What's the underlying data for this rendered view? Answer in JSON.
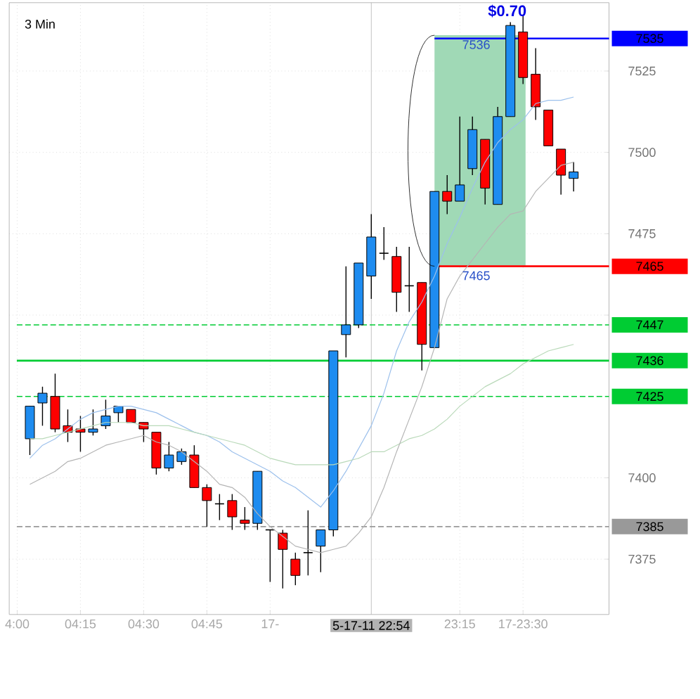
{
  "chart_data": {
    "type": "candlestick",
    "title": "3 Min",
    "categories": [
      "4:00",
      null,
      null,
      null,
      null,
      "04:15",
      null,
      null,
      null,
      null,
      "04:30",
      null,
      null,
      null,
      null,
      "04:45",
      null,
      null,
      null,
      null,
      "17-",
      null,
      null,
      null,
      null,
      null,
      null,
      null,
      null,
      null,
      null,
      null,
      null,
      null,
      null,
      "23:15",
      null,
      null,
      null,
      null,
      "17-23:30",
      null,
      null,
      null,
      null
    ],
    "ohlc": [
      null,
      [
        7412,
        7422,
        7407,
        7422
      ],
      [
        7423,
        7428,
        7416,
        7426
      ],
      [
        7425,
        7432,
        7414,
        7415
      ],
      [
        7416,
        7421,
        7411,
        7414
      ],
      [
        7415,
        7419,
        7408,
        7414
      ],
      [
        7414,
        7421,
        7413,
        7415
      ],
      [
        7416,
        7424,
        7415,
        7419
      ],
      [
        7420,
        7422,
        7417,
        7422
      ],
      [
        7421,
        7421,
        7417,
        7417
      ],
      [
        7417,
        7417,
        7411,
        7415
      ],
      [
        7414,
        7414,
        7401,
        7403
      ],
      [
        7403,
        7411,
        7402,
        7407
      ],
      [
        7405,
        7409,
        7404,
        7408
      ],
      [
        7407,
        7410,
        7397,
        7397
      ],
      [
        7397,
        7398,
        7385,
        7393
      ],
      [
        7392,
        7395,
        7387,
        7392
      ],
      [
        7393,
        7395,
        7384,
        7388
      ],
      [
        7387,
        7391,
        7384,
        7386
      ],
      [
        7386,
        7402,
        7384,
        7402
      ],
      [
        7384,
        7384,
        7368,
        7384
      ],
      [
        7383,
        7384,
        7366,
        7378
      ],
      [
        7375,
        7377,
        7367,
        7370
      ],
      [
        7377,
        7390,
        7370,
        7377
      ],
      [
        7379,
        7384,
        7371,
        7384
      ],
      [
        7384,
        7439,
        7382,
        7439
      ],
      [
        7444,
        7465,
        7437,
        7447
      ],
      [
        7447,
        7466,
        7446,
        7466
      ],
      [
        7462,
        7481,
        7455,
        7474
      ],
      [
        7469,
        7477,
        7467,
        7469
      ],
      [
        7468,
        7471,
        7451,
        7457
      ],
      [
        7459,
        7471,
        7451,
        7459
      ],
      [
        7460,
        7460,
        7433,
        7441
      ],
      [
        7440,
        7488,
        7440,
        7488
      ],
      [
        7488,
        7493,
        7481,
        7485
      ],
      [
        7485,
        7511,
        7485,
        7490
      ],
      [
        7495,
        7511,
        7493,
        7507
      ],
      [
        7504,
        7504,
        7484,
        7489
      ],
      [
        7484,
        7514,
        7484,
        7511
      ],
      [
        7511,
        7540,
        7511,
        7539
      ],
      [
        7537,
        7542,
        7521,
        7523
      ],
      [
        7524,
        7532,
        7510,
        7514
      ],
      [
        7513,
        7513,
        7502,
        7502
      ],
      [
        7501,
        7501,
        7487,
        7493
      ],
      [
        7492,
        7497,
        7488,
        7494
      ]
    ],
    "series": [
      {
        "type": "line",
        "color": "#9cc0ec",
        "values": [
          null,
          7406,
          7410,
          7412,
          7415,
          7418,
          7420,
          7421,
          7422,
          7422,
          7421,
          7420,
          7418,
          7416,
          7414,
          7413,
          7411,
          7408,
          7406,
          7404,
          7402,
          7399,
          7397,
          7394,
          7391,
          7396,
          7402,
          7409,
          7416,
          7426,
          7439,
          7448,
          7454,
          7462,
          7472,
          7480,
          7489,
          7497,
          7503,
          7507,
          7510,
          7515,
          7516,
          7516,
          7517
        ]
      },
      {
        "type": "line",
        "color": "#b9d9b9",
        "values": [
          null,
          7412,
          7412,
          7413,
          7414,
          7415,
          7416,
          7417,
          7417,
          7417,
          7416,
          7416,
          7416,
          7415,
          7414,
          7413,
          7412,
          7411,
          7410,
          7408,
          7406,
          7405,
          7404,
          7404,
          7404,
          7404,
          7405,
          7406,
          7408,
          7408,
          7410,
          7412,
          7413,
          7415,
          7418,
          7422,
          7425,
          7428,
          7430,
          7432,
          7435,
          7437,
          7439,
          7440,
          7441
        ]
      },
      {
        "type": "line",
        "color": "#b4b4b4",
        "values": [
          null,
          7398,
          7400,
          7402,
          7405,
          7406,
          7408,
          7410,
          7411,
          7412,
          7413,
          7411,
          7410,
          7408,
          7405,
          7402,
          7398,
          7397,
          7394,
          7389,
          7385,
          7382,
          7379,
          7378,
          7377,
          7378,
          7379,
          7383,
          7388,
          7397,
          7408,
          7418,
          7428,
          7440,
          7455,
          7462,
          7467,
          7472,
          7477,
          7481,
          7482,
          7488,
          7492,
          7496,
          7497
        ]
      }
    ],
    "ylim": [
      7358,
      7546
    ],
    "yticks": [
      7375,
      7400,
      {
        "value": 7450,
        "label": null
      },
      7475,
      7500,
      7525
    ],
    "grid": true,
    "ref_lines": [
      {
        "axis": "y",
        "value": 7535,
        "label": "7535",
        "color": "#0000ff"
      },
      {
        "axis": "y",
        "value": 7465,
        "label": "7465",
        "color": "#ff0000"
      },
      {
        "axis": "y",
        "value": 7447,
        "label": "7447",
        "color": "#00cc33",
        "line_style": "dashed"
      },
      {
        "axis": "y",
        "value": 7436,
        "label": "7436",
        "color": "#00cc33"
      },
      {
        "axis": "y",
        "value": 7425,
        "label": "7425",
        "color": "#00cc33",
        "line_style": "dashed"
      },
      {
        "axis": "y",
        "value": 7385,
        "label": "7385",
        "color": "#999999",
        "line_style": "dashed"
      }
    ],
    "bands": [
      {
        "axis": "y",
        "from": 7465,
        "to": 7536,
        "color": "#a0d9b6"
      }
    ],
    "annotations": [
      "$0.70",
      {
        "text": "7536",
        "y": 7536
      },
      {
        "text": "7465",
        "y": 7465
      },
      "5-17-11 22:54"
    ]
  }
}
